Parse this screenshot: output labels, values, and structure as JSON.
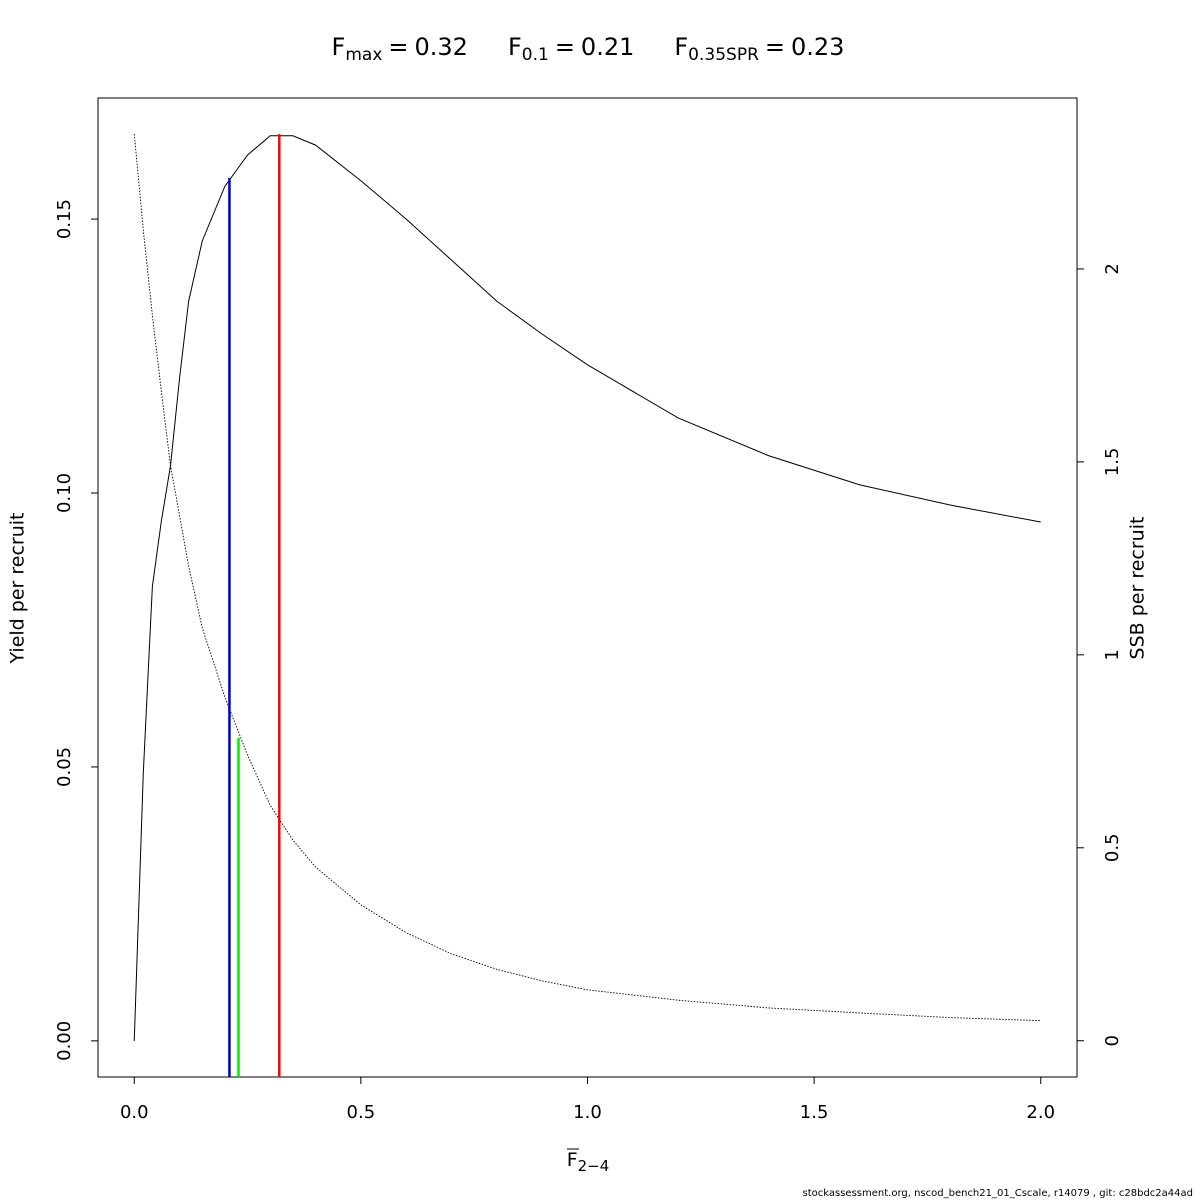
{
  "chart_data": {
    "type": "line",
    "reference_points": [
      {
        "symbol": "F",
        "subscript": "max",
        "relation": "=",
        "value": 0.32,
        "line_top": 0.1655,
        "color": "#ff0000"
      },
      {
        "symbol": "F",
        "subscript": "0.1",
        "relation": "=",
        "value": 0.21,
        "line_top": 0.1575,
        "color": "#0000cd"
      },
      {
        "symbol": "F",
        "subscript": "0.35SPR",
        "relation": "=",
        "value": 0.23,
        "line_top": 0.0553,
        "color": "#00ee00"
      }
    ],
    "xlabel": {
      "symbol": "F",
      "subscript": "2−4"
    },
    "ylabel": "Yield per recruit",
    "y2label": "SSB per recruit",
    "footer": "stockassessment.org, nscod_bench21_01_Cscale, r14079 , git: c28bdc2a44ad",
    "x": [
      0,
      0.02,
      0.04,
      0.06,
      0.08,
      0.1,
      0.12,
      0.15,
      0.2,
      0.25,
      0.3,
      0.35,
      0.4,
      0.5,
      0.6,
      0.7,
      0.8,
      0.9,
      1.0,
      1.2,
      1.4,
      1.6,
      1.8,
      2.0
    ],
    "series": [
      {
        "color": "#000000",
        "style": "solid",
        "values": [
          0,
          0.049,
          0.083,
          0.095,
          0.105,
          0.121,
          0.135,
          0.146,
          0.156,
          0.1617,
          0.1652,
          0.1652,
          0.1635,
          0.157,
          0.15,
          0.1425,
          0.135,
          0.129,
          0.1234,
          0.1137,
          0.1068,
          0.1015,
          0.0978,
          0.0947
        ]
      },
      {
        "color": "#000000",
        "style": "dotted",
        "axis": "y2",
        "values": [
          2.35,
          2.1,
          1.88,
          1.68,
          1.49,
          1.36,
          1.23,
          1.07,
          0.89,
          0.74,
          0.61,
          0.52,
          0.45,
          0.352,
          0.28,
          0.225,
          0.185,
          0.155,
          0.132,
          0.105,
          0.085,
          0.072,
          0.06,
          0.052
        ]
      }
    ],
    "xlim": [
      -0.08,
      2.08
    ],
    "ylim": [
      -0.0066,
      0.1721
    ],
    "y2lim": [
      -0.094,
      2.443
    ],
    "xticks": [
      {
        "value": 0,
        "label": "0.0"
      },
      0.5,
      {
        "value": 1,
        "label": "1.0"
      },
      1.5,
      {
        "value": 2,
        "label": "2.0"
      }
    ],
    "yticks": [
      {
        "value": 0,
        "label": "0.00"
      },
      {
        "value": 0.05,
        "label": "0.05"
      },
      {
        "value": 0.1,
        "label": "0.10"
      },
      {
        "value": 0.15,
        "label": "0.15"
      }
    ],
    "y2ticks": [
      0,
      0.5,
      1,
      1.5,
      2
    ]
  }
}
